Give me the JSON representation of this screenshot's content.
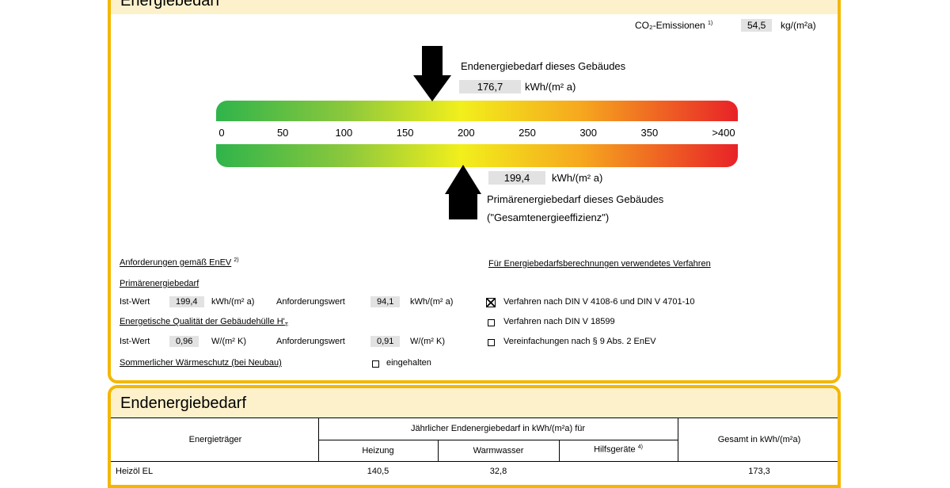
{
  "header": {
    "title": "Energiebedarf"
  },
  "co2": {
    "label": "CO₂-Emissionen",
    "note": "1)",
    "value": "54,5",
    "unit": "kg/(m²a)"
  },
  "end_energy": {
    "label": "Endenergiebedarf dieses Gebäudes",
    "value": "176,7",
    "unit": "kWh/(m² a)"
  },
  "scale": [
    "0",
    "50",
    "100",
    "150",
    "200",
    "250",
    "300",
    "350",
    ">400"
  ],
  "primary_energy": {
    "value": "199,4",
    "unit": "kWh/(m² a)",
    "label": "Primärenergiebedarf dieses Gebäudes",
    "sublabel": "(\"Gesamtenergieeffizienz\")"
  },
  "requirements": {
    "title": "Anforderungen gemäß EnEV",
    "note": "2)",
    "primary": {
      "title": "Primärenergiebedarf",
      "actual_label": "Ist-Wert",
      "actual": "199,4",
      "actual_unit": "kWh/(m² a)",
      "req_label": "Anforderungswert",
      "req": "94,1",
      "req_unit": "kWh/(m² a)"
    },
    "envelope": {
      "title": "Energetische Qualität der Gebäudehülle H'",
      "sub": "T",
      "actual_label": "Ist-Wert",
      "actual": "0,96",
      "actual_unit": "W/(m² K)",
      "req_label": "Anforderungswert",
      "req": "0,91",
      "req_unit": "W/(m² K)"
    },
    "summer": {
      "title": "Sommerlicher Wärmeschutz (bei Neubau)",
      "option": "eingehalten"
    }
  },
  "method": {
    "title": "Für Energiebedarfsberechnungen verwendetes Verfahren",
    "options": [
      "Verfahren nach DIN V 4108-6 und DIN V 4701-10",
      "Verfahren nach DIN V 18599",
      "Vereinfachungen nach § 9 Abs. 2 EnEV"
    ]
  },
  "section2": {
    "title": "Endenergiebedarf"
  },
  "table": {
    "carrier_header": "Energieträger",
    "group_header": "Jährlicher Endenergiebedarf in kWh/(m²a) für",
    "heating_header": "Heizung",
    "water_header": "Warmwasser",
    "aux_header": "Hilfsgeräte",
    "aux_note": "4)",
    "total_header": "Gesamt in kWh/(m²a)",
    "rows": [
      {
        "carrier": "Heizöl EL",
        "heating": "140,5",
        "water": "32,8",
        "total": "173,3"
      }
    ]
  }
}
